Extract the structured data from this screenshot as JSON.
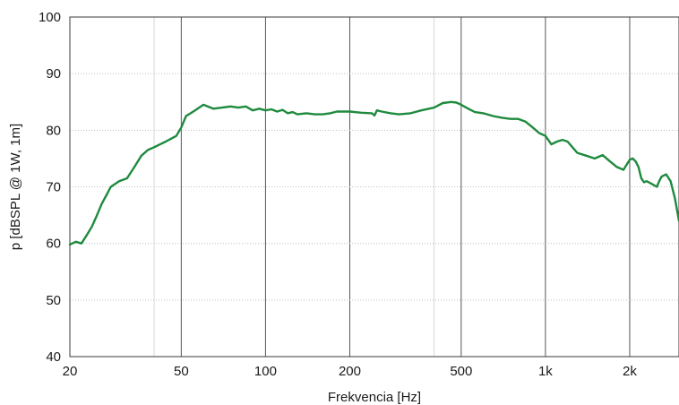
{
  "chart_data": {
    "type": "line",
    "title": "",
    "xlabel": "Frekvencia [Hz]",
    "ylabel": "p [dBSPL @ 1W, 1m]",
    "x_scale": "log",
    "xlim": [
      20,
      3000
    ],
    "ylim": [
      40,
      100
    ],
    "grid": true,
    "legend": "none",
    "x_ticks": [
      {
        "value": 20,
        "label": "20"
      },
      {
        "value": 50,
        "label": "50"
      },
      {
        "value": 100,
        "label": "100"
      },
      {
        "value": 200,
        "label": "200"
      },
      {
        "value": 500,
        "label": "500"
      },
      {
        "value": 1000,
        "label": "1k"
      },
      {
        "value": 2000,
        "label": "2k"
      }
    ],
    "x_minor_grid": [
      40,
      400
    ],
    "y_ticks": [
      {
        "value": 40,
        "label": "40"
      },
      {
        "value": 50,
        "label": "50"
      },
      {
        "value": 60,
        "label": "60"
      },
      {
        "value": 70,
        "label": "70"
      },
      {
        "value": 80,
        "label": "80"
      },
      {
        "value": 90,
        "label": "90"
      },
      {
        "value": 100,
        "label": "100"
      }
    ],
    "series": [
      {
        "color": "#1f8a3e",
        "x": [
          20,
          21,
          22,
          23,
          24,
          25,
          26,
          27,
          28,
          30,
          32,
          34,
          35,
          36,
          38,
          40,
          42,
          44,
          46,
          48,
          50,
          52,
          54,
          56,
          60,
          65,
          70,
          75,
          80,
          85,
          90,
          95,
          100,
          105,
          110,
          115,
          120,
          125,
          130,
          140,
          150,
          160,
          170,
          180,
          200,
          220,
          240,
          245,
          250,
          260,
          280,
          300,
          330,
          360,
          400,
          430,
          460,
          480,
          500,
          530,
          560,
          600,
          650,
          700,
          750,
          800,
          850,
          900,
          950,
          1000,
          1050,
          1100,
          1150,
          1200,
          1300,
          1400,
          1500,
          1600,
          1700,
          1800,
          1900,
          2000,
          2050,
          2100,
          2150,
          2200,
          2250,
          2300,
          2400,
          2500,
          2550,
          2600,
          2700,
          2800,
          2900,
          3000
        ],
        "y": [
          59.8,
          60.3,
          60.0,
          61.5,
          63.0,
          65.0,
          67.0,
          68.5,
          70.0,
          71.0,
          71.5,
          73.5,
          74.5,
          75.5,
          76.5,
          77.0,
          77.5,
          78.0,
          78.5,
          79.0,
          80.5,
          82.5,
          83.0,
          83.5,
          84.5,
          83.8,
          84.0,
          84.2,
          84.0,
          84.2,
          83.5,
          83.8,
          83.5,
          83.7,
          83.3,
          83.6,
          83.0,
          83.2,
          82.8,
          83.0,
          82.8,
          82.8,
          83.0,
          83.3,
          83.3,
          83.1,
          83.0,
          82.6,
          83.5,
          83.3,
          83.0,
          82.8,
          83.0,
          83.5,
          84.0,
          84.8,
          85.0,
          84.9,
          84.5,
          83.8,
          83.2,
          83.0,
          82.5,
          82.2,
          82.0,
          82.0,
          81.5,
          80.5,
          79.5,
          79.0,
          77.5,
          78.0,
          78.3,
          78.0,
          76.0,
          75.5,
          75.0,
          75.6,
          74.5,
          73.5,
          73.0,
          74.8,
          75.0,
          74.5,
          73.5,
          71.5,
          70.8,
          71.0,
          70.5,
          70.0,
          71.0,
          71.8,
          72.2,
          71.0,
          68.0,
          64.0
        ]
      }
    ]
  }
}
